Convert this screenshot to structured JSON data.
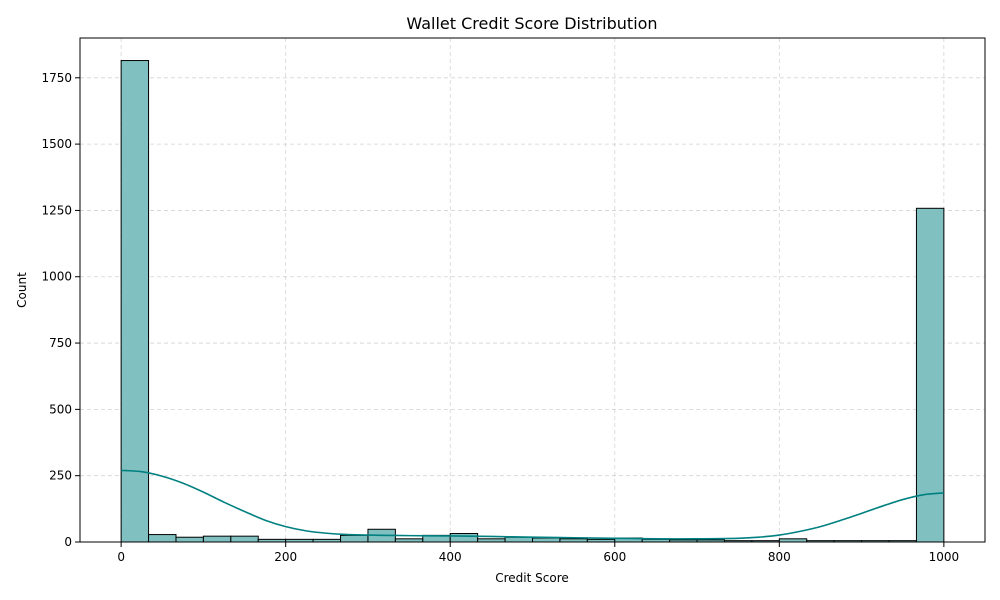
{
  "chart_data": {
    "type": "bar",
    "title": "Wallet Credit Score Distribution",
    "xlabel": "Credit Score",
    "ylabel": "Count",
    "xlim": [
      -50,
      1050
    ],
    "ylim": [
      0,
      1900
    ],
    "xticks": [
      0,
      200,
      400,
      600,
      800,
      1000
    ],
    "yticks": [
      0,
      250,
      500,
      750,
      1000,
      1250,
      1500,
      1750
    ],
    "grid": true,
    "bin_edges": [
      0,
      33.33,
      66.67,
      100,
      133.33,
      166.67,
      200,
      233.33,
      266.67,
      300,
      333.33,
      366.67,
      400,
      433.33,
      466.67,
      500,
      533.33,
      566.67,
      600,
      633.33,
      666.67,
      700,
      733.33,
      766.67,
      800,
      833.33,
      866.67,
      900,
      933.33,
      966.67,
      1000
    ],
    "values": [
      1815,
      28,
      18,
      22,
      22,
      10,
      10,
      10,
      25,
      48,
      12,
      25,
      32,
      12,
      18,
      15,
      12,
      10,
      15,
      10,
      8,
      8,
      5,
      5,
      12,
      5,
      5,
      5,
      5,
      1258
    ],
    "kde": {
      "x": [
        0,
        25,
        50,
        75,
        100,
        125,
        150,
        175,
        200,
        225,
        250,
        275,
        300,
        350,
        400,
        450,
        500,
        550,
        600,
        650,
        700,
        750,
        775,
        800,
        825,
        850,
        875,
        900,
        925,
        950,
        975,
        1000
      ],
      "y": [
        270,
        265,
        248,
        222,
        188,
        150,
        115,
        82,
        58,
        42,
        33,
        28,
        26,
        24,
        23,
        21,
        18,
        16,
        14,
        12,
        12,
        14,
        18,
        26,
        40,
        58,
        82,
        108,
        135,
        160,
        178,
        185
      ]
    },
    "colors": {
      "bar_fill": "#80c0c0",
      "bar_edge": "#000000",
      "kde_line": "#008080"
    }
  }
}
